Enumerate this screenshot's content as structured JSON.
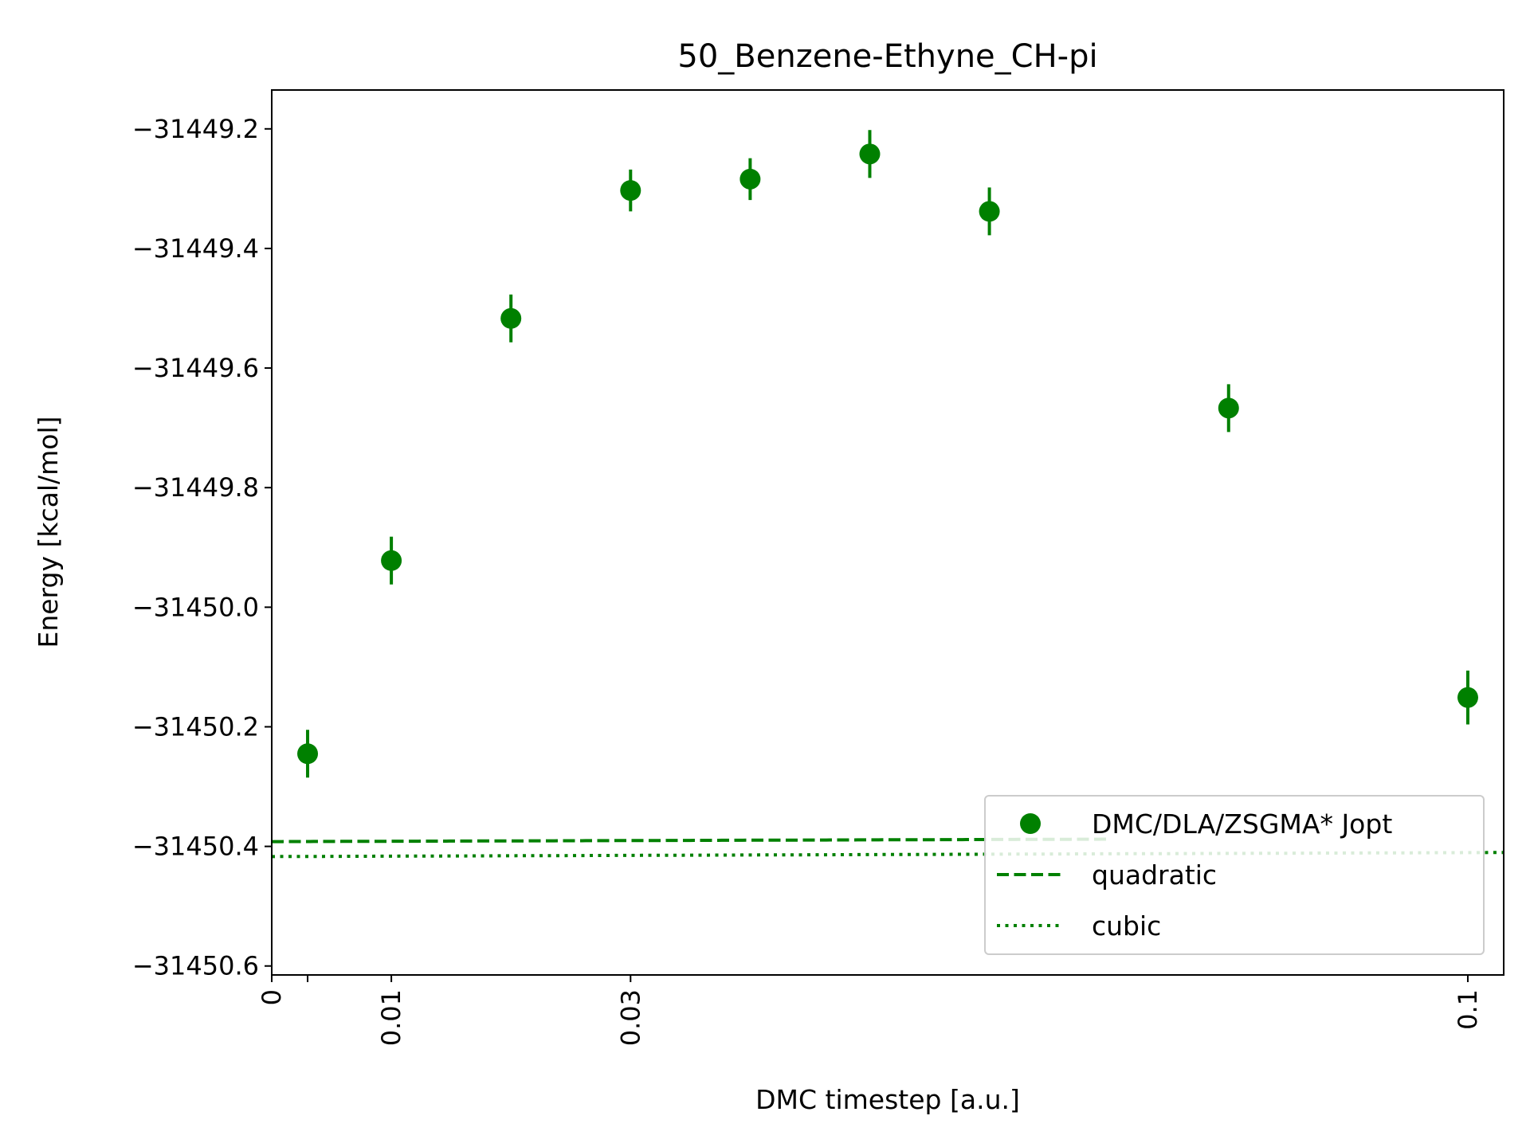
{
  "chart_data": {
    "type": "scatter",
    "title": "50_Benzene-Ethyne_CH-pi",
    "xlabel": "DMC timestep [a.u.]",
    "ylabel": "Energy [kcal/mol]",
    "xlim": [
      0,
      0.103
    ],
    "ylim": [
      -31450.615,
      -31449.135
    ],
    "x_ticks": [
      {
        "value": 0,
        "label": "0"
      },
      {
        "value": 0.003,
        "label": ""
      },
      {
        "value": 0.01,
        "label": "0.01"
      },
      {
        "value": 0.03,
        "label": "0.03"
      },
      {
        "value": 0.1,
        "label": "0.1"
      }
    ],
    "y_ticks": [
      {
        "value": -31449.2,
        "label": "−31449.2"
      },
      {
        "value": -31449.4,
        "label": "−31449.4"
      },
      {
        "value": -31449.6,
        "label": "−31449.6"
      },
      {
        "value": -31449.8,
        "label": "−31449.8"
      },
      {
        "value": -31450.0,
        "label": "−31450.0"
      },
      {
        "value": -31450.2,
        "label": "−31450.2"
      },
      {
        "value": -31450.4,
        "label": "−31450.4"
      },
      {
        "value": -31450.6,
        "label": "−31450.6"
      }
    ],
    "color": "#008000",
    "series": [
      {
        "name": "DMC/DLA/ZSGMA* Jopt",
        "style": "markers-with-errorbars",
        "points": [
          {
            "x": 0.003,
            "y": -31450.245,
            "err": 0.04
          },
          {
            "x": 0.01,
            "y": -31449.922,
            "err": 0.04
          },
          {
            "x": 0.02,
            "y": -31449.517,
            "err": 0.04
          },
          {
            "x": 0.03,
            "y": -31449.303,
            "err": 0.035
          },
          {
            "x": 0.04,
            "y": -31449.284,
            "err": 0.035
          },
          {
            "x": 0.05,
            "y": -31449.242,
            "err": 0.04
          },
          {
            "x": 0.06,
            "y": -31449.338,
            "err": 0.04
          },
          {
            "x": 0.08,
            "y": -31449.667,
            "err": 0.04
          },
          {
            "x": 0.1,
            "y": -31450.151,
            "err": 0.045
          }
        ]
      },
      {
        "name": "quadratic",
        "style": "dashed",
        "coefficients": [
          -31450.392,
          0.0588,
          -0.000661
        ],
        "x_range": [
          0,
          0.07
        ]
      },
      {
        "name": "cubic",
        "style": "dotted",
        "coefficients": [
          -31450.417,
          0.06598,
          -0.001007,
          4.46e-06
        ],
        "x_range": [
          0,
          0.103
        ]
      }
    ],
    "legend": {
      "placement": "lower-right",
      "entries": [
        "DMC/DLA/ZSGMA* Jopt",
        "quadratic",
        "cubic"
      ]
    },
    "grid": false
  }
}
